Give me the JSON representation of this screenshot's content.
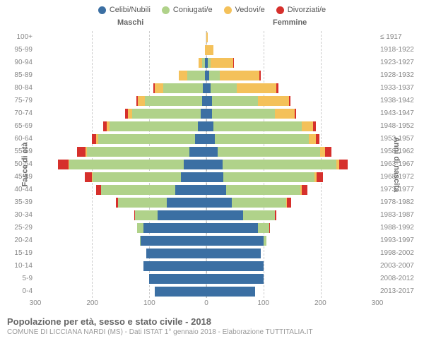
{
  "legend": [
    {
      "label": "Celibi/Nubili",
      "color": "#3b6fa3"
    },
    {
      "label": "Coniugati/e",
      "color": "#b0d28a"
    },
    {
      "label": "Vedovi/e",
      "color": "#f4c15a"
    },
    {
      "label": "Divorziati/e",
      "color": "#d6302c"
    }
  ],
  "headers": {
    "male": "Maschi",
    "female": "Femmine",
    "right_sub": "≤ 1917"
  },
  "axis": {
    "left_title": "Fasce di età",
    "right_title": "Anni di nascita",
    "xmax": 300,
    "xticks": [
      300,
      200,
      100,
      0,
      100,
      200,
      300
    ]
  },
  "colors": {
    "celibi": "#3b6fa3",
    "coniugati": "#b0d28a",
    "vedovi": "#f4c15a",
    "divorziati": "#d6302c",
    "grid": "#cccccc",
    "text": "#888888",
    "bg": "#ffffff"
  },
  "rows": [
    {
      "age": "100+",
      "birth": "≤ 1917",
      "m": {
        "c": 0,
        "k": 0,
        "v": 0,
        "d": 0
      },
      "f": {
        "c": 0,
        "k": 0,
        "v": 3,
        "d": 0
      }
    },
    {
      "age": "95-99",
      "birth": "1918-1922",
      "m": {
        "c": 0,
        "k": 0,
        "v": 3,
        "d": 0
      },
      "f": {
        "c": 0,
        "k": 0,
        "v": 12,
        "d": 0
      }
    },
    {
      "age": "90-94",
      "birth": "1923-1927",
      "m": {
        "c": 2,
        "k": 6,
        "v": 6,
        "d": 0
      },
      "f": {
        "c": 3,
        "k": 4,
        "v": 40,
        "d": 1
      }
    },
    {
      "age": "85-89",
      "birth": "1928-1932",
      "m": {
        "c": 3,
        "k": 30,
        "v": 15,
        "d": 1
      },
      "f": {
        "c": 5,
        "k": 18,
        "v": 70,
        "d": 2
      }
    },
    {
      "age": "80-84",
      "birth": "1933-1937",
      "m": {
        "c": 6,
        "k": 70,
        "v": 15,
        "d": 2
      },
      "f": {
        "c": 8,
        "k": 45,
        "v": 70,
        "d": 3
      }
    },
    {
      "age": "75-79",
      "birth": "1938-1942",
      "m": {
        "c": 8,
        "k": 100,
        "v": 12,
        "d": 3
      },
      "f": {
        "c": 10,
        "k": 80,
        "v": 55,
        "d": 3
      }
    },
    {
      "age": "70-74",
      "birth": "1943-1947",
      "m": {
        "c": 10,
        "k": 120,
        "v": 8,
        "d": 4
      },
      "f": {
        "c": 10,
        "k": 110,
        "v": 35,
        "d": 3
      }
    },
    {
      "age": "65-69",
      "birth": "1948-1952",
      "m": {
        "c": 15,
        "k": 155,
        "v": 5,
        "d": 6
      },
      "f": {
        "c": 12,
        "k": 155,
        "v": 20,
        "d": 5
      }
    },
    {
      "age": "60-64",
      "birth": "1953-1957",
      "m": {
        "c": 20,
        "k": 170,
        "v": 3,
        "d": 8
      },
      "f": {
        "c": 15,
        "k": 165,
        "v": 12,
        "d": 6
      }
    },
    {
      "age": "55-59",
      "birth": "1958-1962",
      "m": {
        "c": 30,
        "k": 180,
        "v": 2,
        "d": 15
      },
      "f": {
        "c": 20,
        "k": 180,
        "v": 8,
        "d": 12
      }
    },
    {
      "age": "50-54",
      "birth": "1963-1967",
      "m": {
        "c": 40,
        "k": 200,
        "v": 2,
        "d": 18
      },
      "f": {
        "c": 28,
        "k": 200,
        "v": 5,
        "d": 15
      }
    },
    {
      "age": "45-49",
      "birth": "1968-1972",
      "m": {
        "c": 45,
        "k": 155,
        "v": 1,
        "d": 12
      },
      "f": {
        "c": 30,
        "k": 160,
        "v": 3,
        "d": 12
      }
    },
    {
      "age": "40-44",
      "birth": "1973-1977",
      "m": {
        "c": 55,
        "k": 130,
        "v": 0,
        "d": 8
      },
      "f": {
        "c": 35,
        "k": 130,
        "v": 2,
        "d": 10
      }
    },
    {
      "age": "35-39",
      "birth": "1978-1982",
      "m": {
        "c": 70,
        "k": 85,
        "v": 0,
        "d": 4
      },
      "f": {
        "c": 45,
        "k": 95,
        "v": 1,
        "d": 8
      }
    },
    {
      "age": "30-34",
      "birth": "1983-1987",
      "m": {
        "c": 85,
        "k": 40,
        "v": 0,
        "d": 2
      },
      "f": {
        "c": 65,
        "k": 55,
        "v": 0,
        "d": 3
      }
    },
    {
      "age": "25-29",
      "birth": "1988-1992",
      "m": {
        "c": 110,
        "k": 12,
        "v": 0,
        "d": 0
      },
      "f": {
        "c": 90,
        "k": 20,
        "v": 0,
        "d": 1
      }
    },
    {
      "age": "20-24",
      "birth": "1993-1997",
      "m": {
        "c": 115,
        "k": 2,
        "v": 0,
        "d": 0
      },
      "f": {
        "c": 100,
        "k": 5,
        "v": 0,
        "d": 0
      }
    },
    {
      "age": "15-19",
      "birth": "1998-2002",
      "m": {
        "c": 105,
        "k": 0,
        "v": 0,
        "d": 0
      },
      "f": {
        "c": 95,
        "k": 0,
        "v": 0,
        "d": 0
      }
    },
    {
      "age": "10-14",
      "birth": "2003-2007",
      "m": {
        "c": 110,
        "k": 0,
        "v": 0,
        "d": 0
      },
      "f": {
        "c": 100,
        "k": 0,
        "v": 0,
        "d": 0
      }
    },
    {
      "age": "5-9",
      "birth": "2008-2012",
      "m": {
        "c": 100,
        "k": 0,
        "v": 0,
        "d": 0
      },
      "f": {
        "c": 100,
        "k": 0,
        "v": 0,
        "d": 0
      }
    },
    {
      "age": "0-4",
      "birth": "2013-2017",
      "m": {
        "c": 90,
        "k": 0,
        "v": 0,
        "d": 0
      },
      "f": {
        "c": 85,
        "k": 0,
        "v": 0,
        "d": 0
      }
    }
  ],
  "footer": {
    "title": "Popolazione per età, sesso e stato civile - 2018",
    "sub": "COMUNE DI LICCIANA NARDI (MS) - Dati ISTAT 1° gennaio 2018 - Elaborazione TUTTITALIA.IT"
  }
}
